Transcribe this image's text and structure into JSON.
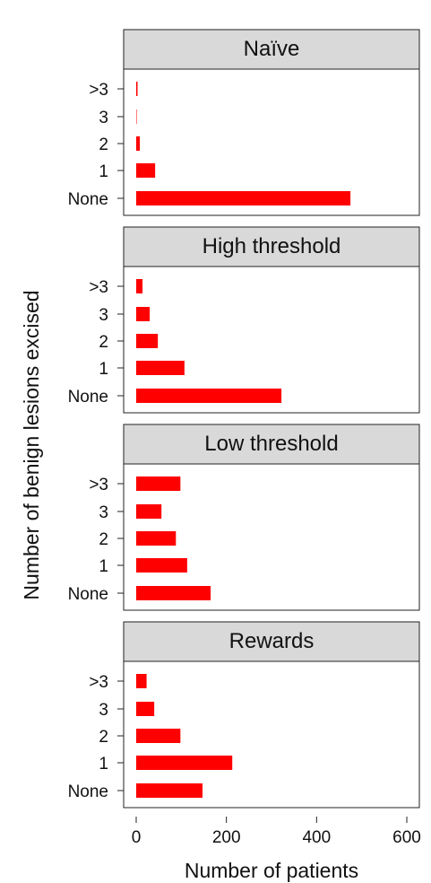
{
  "chart_data": {
    "type": "bar",
    "orientation": "horizontal",
    "facet_layout": "vertical",
    "xlabel": "Number of patients",
    "ylabel": "Number of benign lesions excised",
    "xlim": [
      0,
      600
    ],
    "xticks": [
      0,
      200,
      400,
      600
    ],
    "categories": [
      "None",
      "1",
      "2",
      "3",
      ">3"
    ],
    "bar_color": "#ff0000",
    "strip_color": "#d9d9d9",
    "grid": false,
    "legend": "none",
    "panels": [
      {
        "name": "Naïve",
        "values": [
          475,
          42,
          8,
          1,
          3
        ]
      },
      {
        "name": "High threshold",
        "values": [
          322,
          107,
          48,
          30,
          14
        ]
      },
      {
        "name": "Low threshold",
        "values": [
          165,
          113,
          88,
          56,
          98
        ]
      },
      {
        "name": "Rewards",
        "values": [
          147,
          213,
          98,
          40,
          23
        ]
      }
    ]
  }
}
